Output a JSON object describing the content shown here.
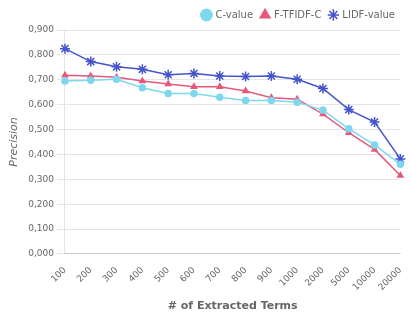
{
  "chart_data": {
    "type": "line",
    "categories": [
      "100",
      "200",
      "300",
      "400",
      "500",
      "600",
      "700",
      "800",
      "900",
      "1000",
      "2000",
      "5000",
      "10000",
      "20000"
    ],
    "series": [
      {
        "name": "C-value",
        "color": "#7DD8EE",
        "marker": "circle",
        "values": [
          0.695,
          0.698,
          0.702,
          0.668,
          0.645,
          0.645,
          0.63,
          0.617,
          0.617,
          0.61,
          0.578,
          0.503,
          0.438,
          0.36
        ]
      },
      {
        "name": "F-TFIDF-C",
        "color": "#E8587A",
        "marker": "triangle",
        "values": [
          0.718,
          0.715,
          0.71,
          0.695,
          0.683,
          0.672,
          0.672,
          0.655,
          0.628,
          0.622,
          0.562,
          0.487,
          0.42,
          0.315
        ]
      },
      {
        "name": "LIDF-value",
        "color": "#4455CC",
        "marker": "star",
        "values": [
          0.825,
          0.773,
          0.752,
          0.742,
          0.72,
          0.725,
          0.715,
          0.713,
          0.715,
          0.702,
          0.665,
          0.58,
          0.53,
          0.382
        ]
      }
    ],
    "xlabel": "# of Extracted Terms",
    "ylabel": "Precision",
    "ylim": [
      0.0,
      0.9
    ],
    "yticks": [
      {
        "value": 0.0,
        "label": "0,000"
      },
      {
        "value": 0.1,
        "label": "0,100"
      },
      {
        "value": 0.2,
        "label": "0,200"
      },
      {
        "value": 0.3,
        "label": "0,300"
      },
      {
        "value": 0.4,
        "label": "0,400"
      },
      {
        "value": 0.5,
        "label": "0,500"
      },
      {
        "value": 0.6,
        "label": "0,600"
      },
      {
        "value": 0.7,
        "label": "0,700"
      },
      {
        "value": 0.8,
        "label": "0,800"
      },
      {
        "value": 0.9,
        "label": "0,900"
      }
    ],
    "grid": true,
    "legend": "upper right"
  }
}
